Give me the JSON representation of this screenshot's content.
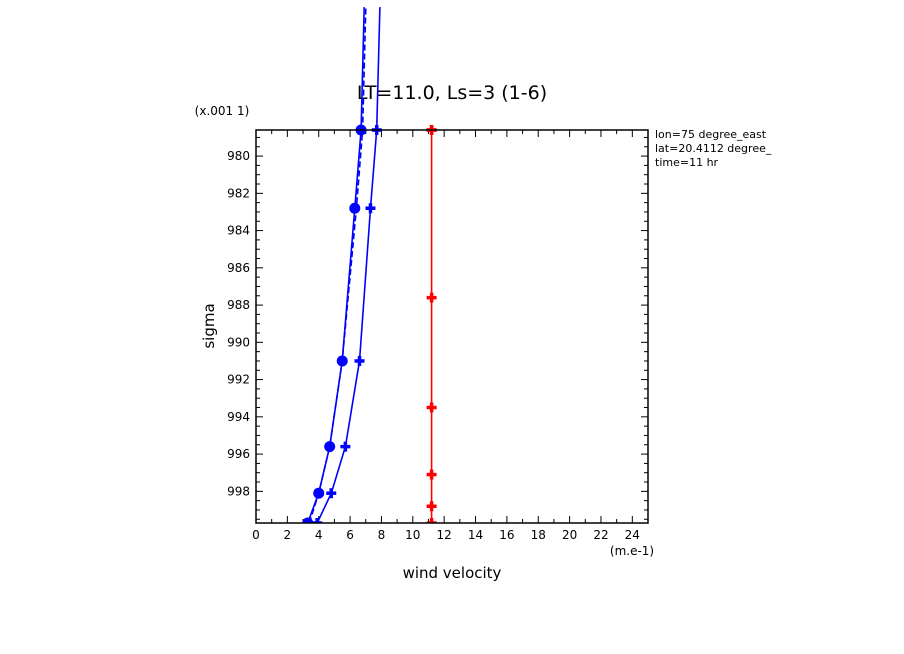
{
  "chart_data": {
    "type": "line",
    "title": "LT=11.0, Ls=3 (1-6)",
    "xlabel": "wind velocity",
    "ylabel": "sigma",
    "x_unit": "(m.e-1)",
    "y_unit": "(x.001 1)",
    "xlim": [
      0,
      25
    ],
    "ylim": [
      999.7,
      978.6
    ],
    "x_ticks": [
      "0",
      "2",
      "4",
      "6",
      "8",
      "10",
      "12",
      "14",
      "16",
      "18",
      "20",
      "22",
      "24"
    ],
    "y_ticks": [
      "980",
      "982",
      "984",
      "986",
      "988",
      "990",
      "992",
      "994",
      "996",
      "998"
    ],
    "info": [
      "lon=75 degree_east",
      "lat=20.4112 degree_",
      "time=11 hr"
    ],
    "series": [
      {
        "color": "#0000ff",
        "style": "solid",
        "marker": "cross",
        "x": [
          3.9,
          4.8,
          5.7,
          6.6,
          7.3,
          7.7,
          7.9
        ],
        "y": [
          999.7,
          998.1,
          995.6,
          991.0,
          982.8,
          978.6,
          972.0
        ]
      },
      {
        "color": "#0000ff",
        "style": "dashed",
        "marker": "none",
        "x": [
          3.4,
          4.0,
          4.7,
          5.5,
          6.4,
          6.8,
          7.0
        ],
        "y": [
          999.7,
          998.1,
          995.6,
          991.0,
          982.8,
          978.6,
          972.0
        ]
      },
      {
        "color": "#0000ff",
        "style": "solid",
        "marker": "dot",
        "x": [
          3.3,
          4.0,
          4.7,
          5.5,
          6.3,
          6.7,
          6.9
        ],
        "y": [
          999.7,
          998.1,
          995.6,
          991.0,
          982.8,
          978.6,
          972.0
        ]
      },
      {
        "color": "#ff0000",
        "style": "solid",
        "marker": "cross",
        "x": [
          11.2,
          11.2,
          11.2,
          11.2,
          11.2,
          11.2,
          11.2
        ],
        "y": [
          999.7,
          998.8,
          997.1,
          993.5,
          987.6,
          978.6,
          978.6
        ]
      }
    ]
  }
}
